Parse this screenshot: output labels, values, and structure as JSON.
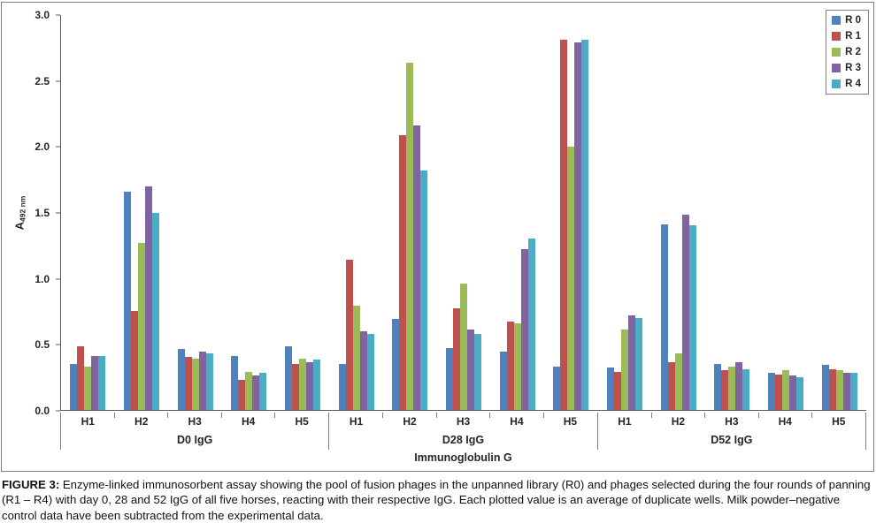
{
  "figure": {
    "caption_label": "FIGURE 3:",
    "caption_text": " Enzyme-linked immunosorbent assay showing the pool of fusion phages in the unpanned library (R0) and phages selected during the four rounds of panning (R1 – R4) with day 0, 28 and 52 IgG of all five horses, reacting with their respective IgG. Each plotted value is an average of duplicate wells. Milk powder–negative control data have been subtracted from the experimental data."
  },
  "chart_data": {
    "type": "bar",
    "title": "",
    "ylabel": "A",
    "ylabel_subscript": "492 nm",
    "xlabel": "Immunoglobulin G",
    "ylim": [
      0,
      3.0
    ],
    "yticks": [
      0.0,
      0.5,
      1.0,
      1.5,
      2.0,
      2.5,
      3.0
    ],
    "grid": false,
    "legend_position": "top-right",
    "groups": [
      "D0 IgG",
      "D28 IgG",
      "D52 IgG"
    ],
    "subcategories": [
      "H1",
      "H2",
      "H3",
      "H4",
      "H5"
    ],
    "series": [
      {
        "name": "R 0",
        "color": "#4F81BD",
        "values": [
          [
            0.35,
            1.66,
            0.46,
            0.41,
            0.48
          ],
          [
            0.35,
            0.69,
            0.47,
            0.44,
            0.33
          ],
          [
            0.32,
            1.41,
            0.35,
            0.28,
            0.34
          ]
        ]
      },
      {
        "name": "R 1",
        "color": "#C0504D",
        "values": [
          [
            0.48,
            0.75,
            0.4,
            0.23,
            0.35
          ],
          [
            1.14,
            2.09,
            0.77,
            0.67,
            2.81
          ],
          [
            0.29,
            0.36,
            0.3,
            0.27,
            0.31
          ]
        ]
      },
      {
        "name": "R 2",
        "color": "#9BBB59",
        "values": [
          [
            0.33,
            1.27,
            0.39,
            0.29,
            0.39
          ],
          [
            0.79,
            2.64,
            0.96,
            0.66,
            2.0
          ],
          [
            0.61,
            0.43,
            0.33,
            0.3,
            0.3
          ]
        ]
      },
      {
        "name": "R 3",
        "color": "#8064A2",
        "values": [
          [
            0.41,
            1.7,
            0.44,
            0.26,
            0.36
          ],
          [
            0.6,
            2.16,
            0.61,
            1.22,
            2.79
          ],
          [
            0.72,
            1.48,
            0.36,
            0.26,
            0.28
          ]
        ]
      },
      {
        "name": "R 4",
        "color": "#4BACC6",
        "values": [
          [
            0.41,
            1.5,
            0.43,
            0.28,
            0.38
          ],
          [
            0.58,
            1.82,
            0.58,
            1.3,
            2.81
          ],
          [
            0.7,
            1.4,
            0.31,
            0.25,
            0.28
          ]
        ]
      }
    ]
  }
}
